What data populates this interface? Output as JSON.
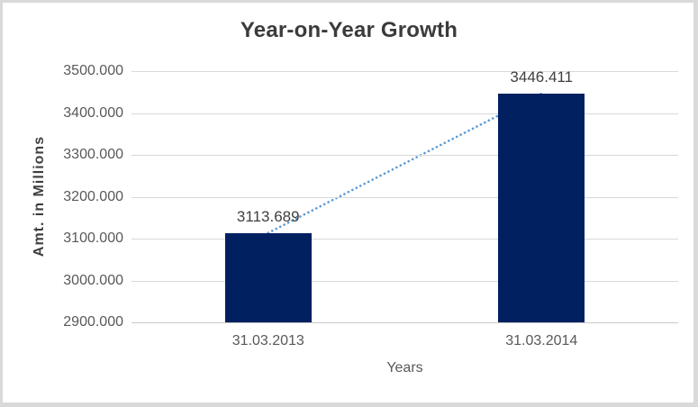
{
  "chart_data": {
    "type": "bar",
    "title": "Year-on-Year Growth",
    "categories": [
      "31.03.2013",
      "31.03.2014"
    ],
    "values": [
      3113.689,
      3446.411
    ],
    "data_labels": [
      "3113.689",
      "3446.411"
    ],
    "xlabel": "Years",
    "ylabel": "Amt. in Millions",
    "ylim": [
      2900,
      3500
    ],
    "yticks": [
      3500,
      3400,
      3300,
      3200,
      3100,
      3000,
      2900
    ],
    "ytick_labels": [
      "3500.000",
      "3400.000",
      "3300.000",
      "3200.000",
      "3100.000",
      "3000.000",
      "2900.000"
    ],
    "grid": true,
    "legend": "none",
    "trendline": {
      "style": "dotted",
      "from_value": 3113.689,
      "to_value": 3446.411
    },
    "colors": {
      "bar": "#002060",
      "trendline": "#5B9BD5",
      "gridline": "#D9D9D9",
      "axis_line": "#C9C9C9",
      "title_text": "#3B3B3B",
      "axis_title_text": "#3F3F3F",
      "tick_text": "#595959",
      "data_label_text": "#404040",
      "frame_border": "#D9D9D9",
      "background": "#FFFFFF"
    }
  }
}
